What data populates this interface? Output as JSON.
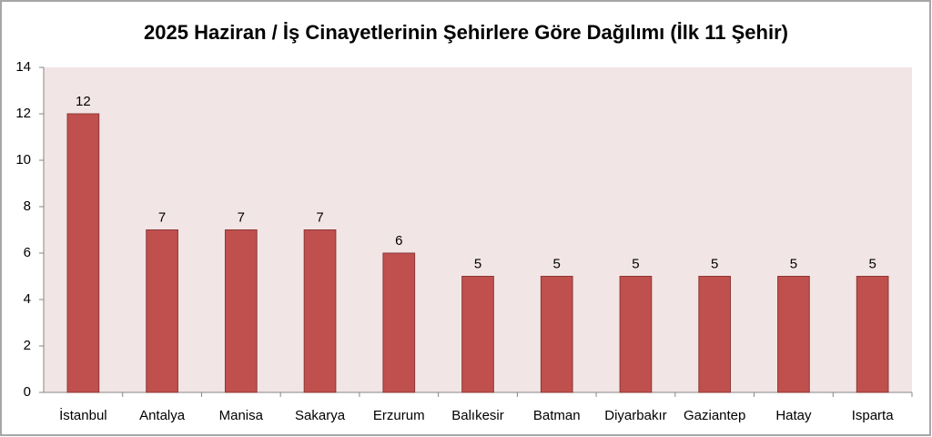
{
  "chart_data": {
    "type": "bar",
    "title": "2025 Haziran / İş Cinayetlerinin Şehirlere Göre Dağılımı (İlk 11 Şehir)",
    "categories": [
      "İstanbul",
      "Antalya",
      "Manisa",
      "Sakarya",
      "Erzurum",
      "Balıkesir",
      "Batman",
      "Diyarbakır",
      "Gaziantep",
      "Hatay",
      "Isparta"
    ],
    "values": [
      12,
      7,
      7,
      7,
      6,
      5,
      5,
      5,
      5,
      5,
      5
    ],
    "color": "#c0504d",
    "ylim": [
      0,
      14
    ],
    "yticks": [
      0,
      2,
      4,
      6,
      8,
      10,
      12,
      14
    ]
  }
}
